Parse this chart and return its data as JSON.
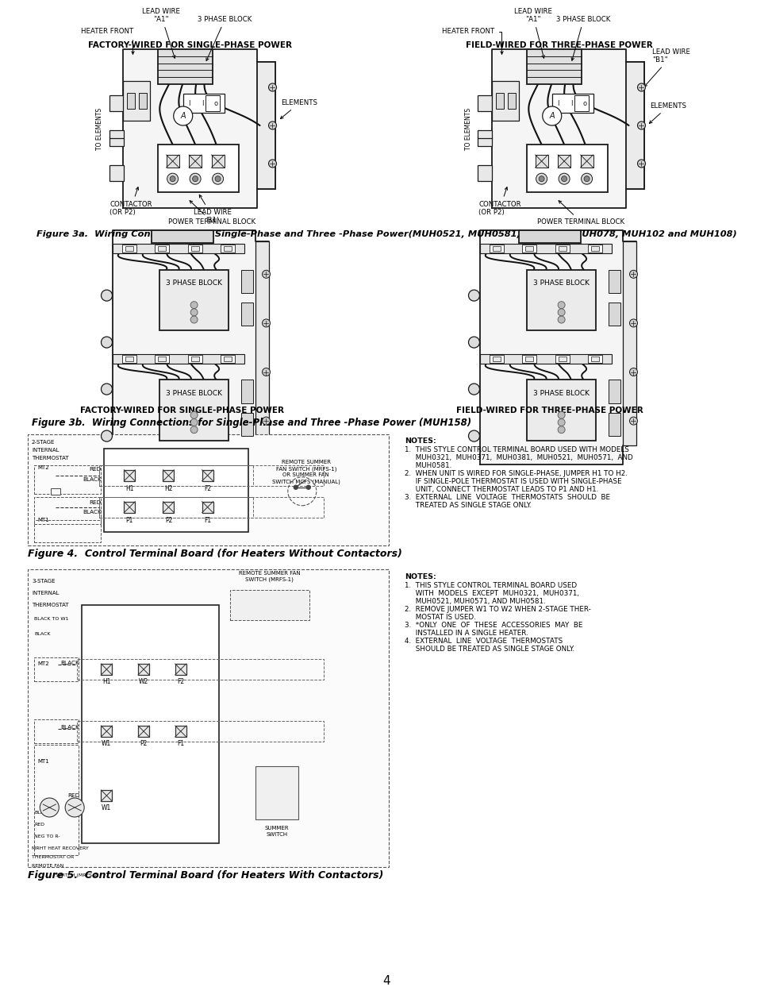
{
  "background_color": "#ffffff",
  "page_number": "4",
  "title_fig3a": "Figure 3a.  Wiring Connections for Single-Phase and Three -Phase Power(MUH0521, MUH0581, MUH072, MUH078, MUH102 and MUH108)",
  "title_fig3b": "Figure 3b.  Wiring Connections for Single-Phase and Three -Phase Power (MUH158)",
  "title_fig4": "Figure 4.  Control Terminal Board (for Heaters Without Contactors)",
  "title_fig5": "Figure 5.  Control Terminal Board (for Heaters With Contactors)",
  "label_factory": "FACTORY-WIRED FOR SINGLE-PHASE POWER",
  "label_field": "FIELD-WIRED FOR THREE-PHASE POWER",
  "notes4_title": "NOTES:",
  "notes4_1": "1.  THIS STYLE CONTROL TERMINAL BOARD USED WITH MODELS",
  "notes4_1b": "     MUH0321,  MUH0371,  MUH0381,  MUH0521,  MUH0571,  AND",
  "notes4_1c": "     MUH0581.",
  "notes4_2": "2.  WHEN UNIT IS WIRED FOR SINGLE-PHASE, JUMPER H1 TO H2.",
  "notes4_2b": "     IF SINGLE-POLE THERMOSTAT IS USED WITH SINGLE-PHASE",
  "notes4_2c": "     UNIT, CONNECT THERMOSTAT LEADS TO P1 AND H1.",
  "notes4_3": "3.  EXTERNAL  LINE  VOLTAGE  THERMOSTATS  SHOULD  BE",
  "notes4_3b": "     TREATED AS SINGLE STAGE ONLY.",
  "notes5_title": "NOTES:",
  "notes5_1": "1.  THIS STYLE CONTROL TERMINAL BOARD USED",
  "notes5_1b": "     WITH  MODELS  EXCEPT  MUH0321,  MUH0371,",
  "notes5_1c": "     MUH0521, MUH0571, AND MUH0581.",
  "notes5_2": "2.  REMOVE JUMPER W1 TO W2 WHEN 2-STAGE THER-",
  "notes5_2b": "     MOSTAT IS USED.",
  "notes5_3": "3.  *ONLY  ONE  OF  THESE  ACCESSORIES  MAY  BE",
  "notes5_3b": "     INSTALLED IN A SINGLE HEATER.",
  "notes5_4": "4.  EXTERNAL  LINE  VOLTAGE  THERMOSTATS",
  "notes5_4b": "     SHOULD BE TREATED AS SINGLE STAGE ONLY.",
  "fig3a_left_labels": {
    "heater_front": "HEATER FRONT",
    "lead_wire_a1": "LEAD WIRE\n\"A1\"",
    "three_phase_block": "3 PHASE BLOCK",
    "elements": "ELEMENTS",
    "lead_wire_b1": "LEAD WIRE\n'B1'",
    "contactor": "CONTACTOR\n(OR P2)",
    "power_terminal": "POWER TERMINAL BLOCK",
    "to_elements": "TO ELEMENTS"
  },
  "fig3a_right_labels": {
    "heater_front": "HEATER FRONT",
    "lead_wire_a1": "LEAD WIRE\n\"A1\"",
    "three_phase_block": "3 PHASE BLOCK",
    "lead_wire_b1": "LEAD WIRE\n\"B1\"",
    "elements": "ELEMENTS",
    "contactor": "CONTACTOR\n(OR P2)",
    "power_terminal": "POWER TERMINAL BLOCK",
    "to_elements": "TO ELEMENTS"
  }
}
